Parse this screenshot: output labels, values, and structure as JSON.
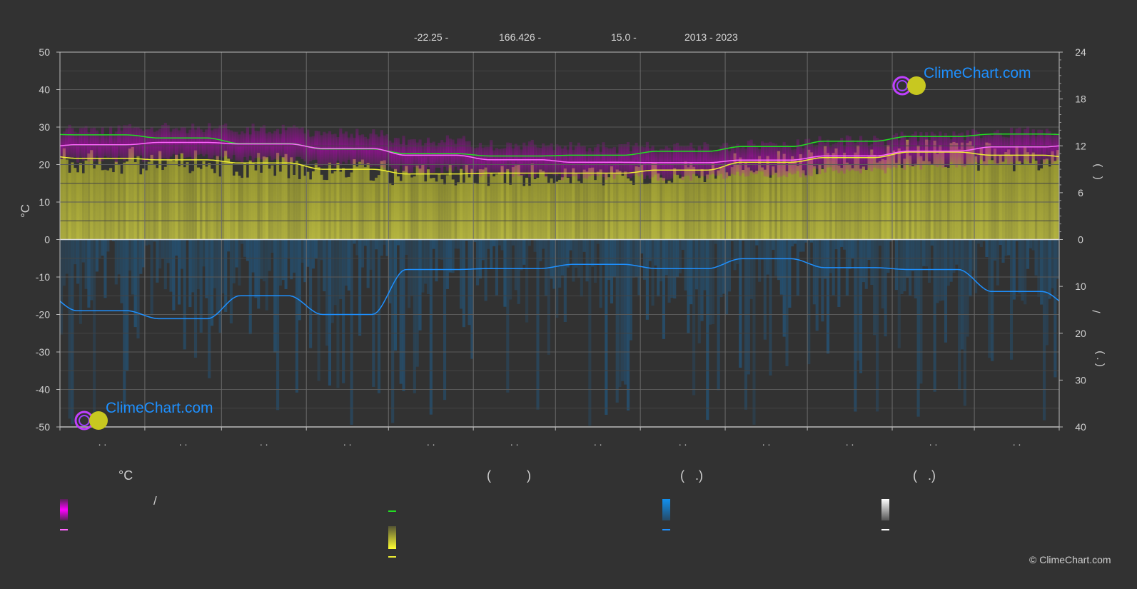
{
  "header": {
    "lat": "-22.25 -",
    "lon": "166.426 -",
    "elev": "15.0 -",
    "years": "2013 - 2023"
  },
  "logo_text": "ClimeChart.com",
  "copyright": "© ClimeChart.com",
  "colors": {
    "daylight": "#22dd22",
    "sunshine": "#eeee33",
    "temp": "#ff66ff",
    "temp_band": "#dd00dd",
    "precip": "#1e90ff",
    "bg": "#323232"
  },
  "chart_data": {
    "type": "line",
    "categories": [
      ". .",
      ". .",
      ". .",
      ". .",
      ". .",
      ". .",
      ". .",
      ". .",
      ". .",
      ". .",
      ". .",
      ". ."
    ],
    "ylabel_left": "°C",
    "ylim_left": [
      -50,
      50
    ],
    "yticks_left": [
      "50",
      "40",
      "30",
      "20",
      "10",
      "0",
      "-10",
      "-20",
      "-30",
      "-40",
      "-50"
    ],
    "yticks_right_top": [
      "24",
      "18",
      "12",
      "6",
      "0"
    ],
    "ylim_right_top": [
      0,
      24
    ],
    "yticks_right_bottom": [
      "10",
      "20",
      "30",
      "40"
    ],
    "ylim_right_bottom": [
      0,
      40
    ],
    "ylabel_right_top": "(   )",
    "ylabel_right_slash": "/",
    "ylabel_right_bottom": "( . )",
    "grid": true,
    "series": [
      {
        "key": "daylight",
        "axis": "right_top",
        "values": [
          13.4,
          13.0,
          12.3,
          11.6,
          11.0,
          10.7,
          10.8,
          11.3,
          11.9,
          12.6,
          13.2,
          13.5
        ]
      },
      {
        "key": "sunshine",
        "axis": "right_top",
        "values": [
          10.4,
          10.2,
          9.8,
          9.0,
          8.4,
          8.5,
          8.5,
          8.9,
          9.9,
          10.5,
          11.2,
          10.8
        ]
      },
      {
        "key": "mean_temp",
        "axis": "left",
        "values": [
          25.3,
          25.9,
          25.5,
          24.3,
          22.5,
          21.3,
          20.6,
          20.5,
          21.2,
          22.3,
          23.6,
          24.7
        ]
      },
      {
        "key": "precipitation",
        "axis": "right_bottom",
        "values": [
          15.2,
          16.9,
          12.0,
          16.0,
          6.4,
          6.2,
          5.3,
          6.2,
          4.1,
          6.0,
          6.4,
          11.1
        ]
      }
    ]
  },
  "legend": {
    "col1_title": "°C",
    "col1_slash": "/",
    "col2_title": "(          )",
    "col3_title": "(   .)",
    "col4_title": "(   .)"
  }
}
